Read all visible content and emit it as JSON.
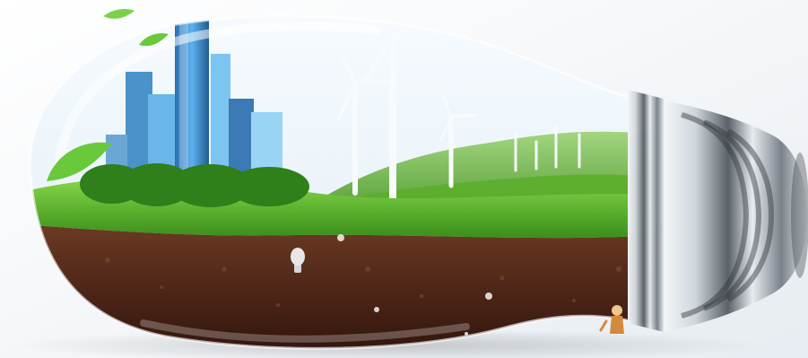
{
  "scene": {
    "subject": "lightbulb-ecosystem",
    "elements": [
      "city-skyline",
      "wind-turbines",
      "green-hills",
      "grass-layer",
      "soil-layer",
      "screw-base",
      "small-figure",
      "leaves"
    ],
    "colors": {
      "background": "#f3f5f7",
      "sky": "#eaf2f7",
      "grass": "#5fbf2a",
      "grass_dark": "#3e8f1c",
      "soil": "#5a2e1c",
      "soil_dark": "#3b1c12",
      "building_blue": "#2f8fd2",
      "metal_light": "#e9eef2",
      "metal_dark": "#3a3f45"
    }
  }
}
